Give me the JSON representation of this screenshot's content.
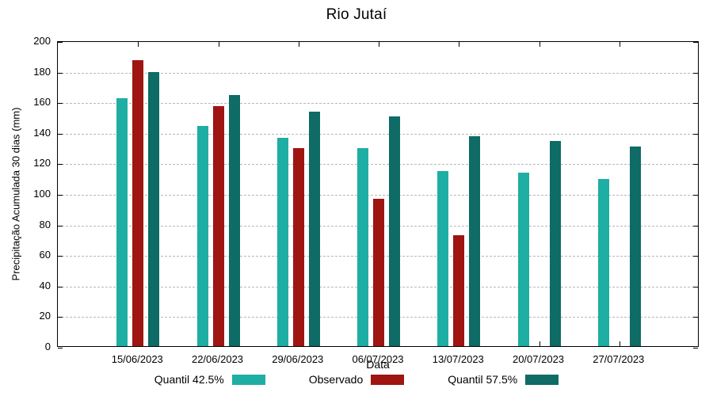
{
  "chart_data": {
    "type": "bar",
    "title": "Rio Jutaí",
    "xlabel": "Data",
    "ylabel": "Precipitação Acumulada 30 dias (mm)",
    "ylim": [
      0,
      200
    ],
    "ytick_step": 20,
    "grid": "horizontal-dashed",
    "legend_position": "bottom-center",
    "categories": [
      "15/06/2023",
      "22/06/2023",
      "29/06/2023",
      "06/07/2023",
      "13/07/2023",
      "20/07/2023",
      "27/07/2023"
    ],
    "series": [
      {
        "name": "Quantil 42.5%",
        "color": "#1FAEA3",
        "values": [
          163,
          145,
          137,
          130,
          115,
          114,
          110
        ]
      },
      {
        "name": "Observado",
        "color": "#9E1511",
        "values": [
          188,
          158,
          130,
          97,
          73,
          null,
          null
        ]
      },
      {
        "name": "Quantil 57.5%",
        "color": "#0E6B66",
        "values": [
          180,
          165,
          154,
          151,
          138,
          135,
          131
        ]
      }
    ]
  }
}
